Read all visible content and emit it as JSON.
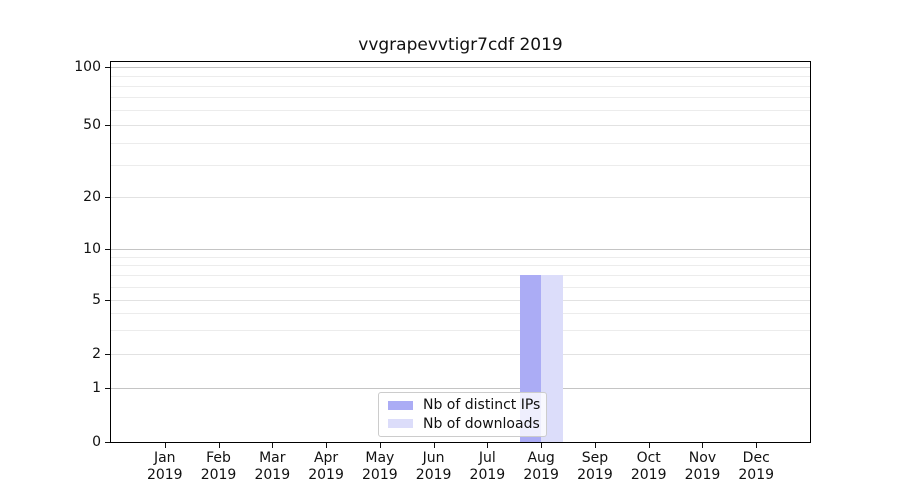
{
  "chart_data": {
    "type": "bar",
    "title": "vvgrapevvtigr7cdf 2019",
    "categories": [
      "Jan 2019",
      "Feb 2019",
      "Mar 2019",
      "Apr 2019",
      "May 2019",
      "Jun 2019",
      "Jul 2019",
      "Aug 2019",
      "Sep 2019",
      "Oct 2019",
      "Nov 2019",
      "Dec 2019"
    ],
    "series": [
      {
        "name": "Nb of distinct IPs",
        "color": "#abacf5",
        "values": [
          0,
          0,
          0,
          0,
          0,
          0,
          0,
          7,
          0,
          0,
          0,
          0
        ]
      },
      {
        "name": "Nb of downloads",
        "color": "#dcddfa",
        "values": [
          0,
          0,
          0,
          0,
          0,
          0,
          0,
          7,
          0,
          0,
          0,
          0
        ]
      }
    ],
    "yticks": [
      0,
      1,
      2,
      5,
      10,
      20,
      50,
      100
    ],
    "ylim": [
      0,
      100
    ],
    "yscale": "symlog",
    "xlabel": "",
    "ylabel": "",
    "grid": true,
    "legend_position": "lower center"
  }
}
